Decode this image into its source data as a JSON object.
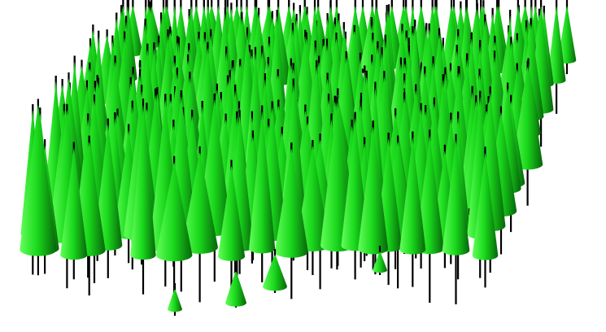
{
  "scene": {
    "subject": "forest-of-conical-trees",
    "background_color": "#ffffff",
    "colors": {
      "foliage_light": "#63ff5a",
      "foliage_mid": "#19d81b",
      "foliage_dark": "#07640a",
      "trunk": "#000000"
    }
  }
}
